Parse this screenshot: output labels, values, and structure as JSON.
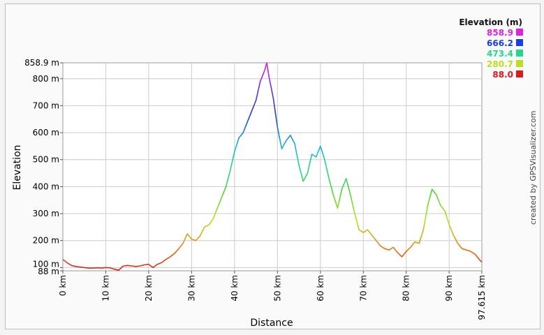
{
  "chart_data": {
    "type": "line",
    "title": "",
    "xlabel": "Distance",
    "ylabel": "Elevation",
    "xlim": [
      0,
      97.615
    ],
    "ylim": [
      88,
      858.9
    ],
    "x_unit": "km",
    "y_unit": "m",
    "grid": true,
    "x_ticks": [
      {
        "value": 0,
        "label": "0 km"
      },
      {
        "value": 10,
        "label": "10 km"
      },
      {
        "value": 20,
        "label": "20 km"
      },
      {
        "value": 30,
        "label": "30 km"
      },
      {
        "value": 40,
        "label": "40 km"
      },
      {
        "value": 50,
        "label": "50 km"
      },
      {
        "value": 60,
        "label": "60 km"
      },
      {
        "value": 70,
        "label": "70 km"
      },
      {
        "value": 80,
        "label": "80 km"
      },
      {
        "value": 90,
        "label": "90 km"
      },
      {
        "value": 97.615,
        "label": "97.615 km"
      }
    ],
    "y_ticks": [
      {
        "value": 88,
        "label": "88 m"
      },
      {
        "value": 100,
        "label": "100 m"
      },
      {
        "value": 200,
        "label": "200 m"
      },
      {
        "value": 300,
        "label": "300 m"
      },
      {
        "value": 400,
        "label": "400 m"
      },
      {
        "value": 500,
        "label": "500 m"
      },
      {
        "value": 600,
        "label": "600 m"
      },
      {
        "value": 700,
        "label": "700 m"
      },
      {
        "value": 800,
        "label": "800 m"
      },
      {
        "value": 858.9,
        "label": "858.9 m"
      }
    ],
    "legend": {
      "title": "Elevation (m)",
      "position": "top-right",
      "entries": [
        {
          "label": "858.9",
          "color": "#e020e0"
        },
        {
          "label": "666.2",
          "color": "#1a3ee0"
        },
        {
          "label": "473.4",
          "color": "#20d890"
        },
        {
          "label": "280.7",
          "color": "#b8e020"
        },
        {
          "label": "88.0",
          "color": "#e01818"
        }
      ]
    },
    "series": [
      {
        "x": [
          0,
          1,
          2,
          3,
          4,
          5,
          6,
          7,
          8,
          9,
          10,
          11,
          12,
          13,
          14,
          15,
          16,
          17,
          18,
          19,
          20,
          21,
          22,
          23,
          24,
          25,
          26,
          27,
          28,
          29,
          30,
          31,
          32,
          33,
          34,
          35,
          36,
          37,
          38,
          39,
          40,
          41,
          42,
          43,
          44,
          45,
          46,
          47,
          47.5,
          48,
          49,
          50,
          51,
          52,
          53,
          54,
          55,
          56,
          57,
          58,
          59,
          60,
          61,
          62,
          63,
          64,
          65,
          66,
          67,
          68,
          69,
          70,
          71,
          72,
          73,
          74,
          75,
          76,
          77,
          78,
          79,
          80,
          81,
          82,
          83,
          84,
          85,
          86,
          87,
          88,
          89,
          90,
          91,
          92,
          93,
          94,
          95,
          96,
          97,
          97.615
        ],
        "y": [
          130,
          118,
          108,
          104,
          102,
          100,
          98,
          98,
          99,
          98,
          100,
          99,
          94,
          90,
          105,
          108,
          106,
          104,
          106,
          110,
          112,
          100,
          112,
          118,
          130,
          140,
          152,
          170,
          190,
          225,
          205,
          200,
          218,
          250,
          258,
          280,
          320,
          360,
          400,
          460,
          530,
          580,
          600,
          640,
          680,
          720,
          790,
          830,
          858.9,
          810,
          730,
          620,
          540,
          570,
          590,
          560,
          480,
          420,
          450,
          520,
          510,
          550,
          500,
          430,
          370,
          320,
          390,
          430,
          370,
          300,
          240,
          230,
          240,
          220,
          200,
          180,
          170,
          165,
          175,
          155,
          140,
          160,
          175,
          195,
          190,
          240,
          330,
          390,
          370,
          330,
          310,
          260,
          220,
          190,
          170,
          165,
          160,
          150,
          130,
          120
        ]
      }
    ]
  },
  "credit": "created by GPSVisualizer.com"
}
